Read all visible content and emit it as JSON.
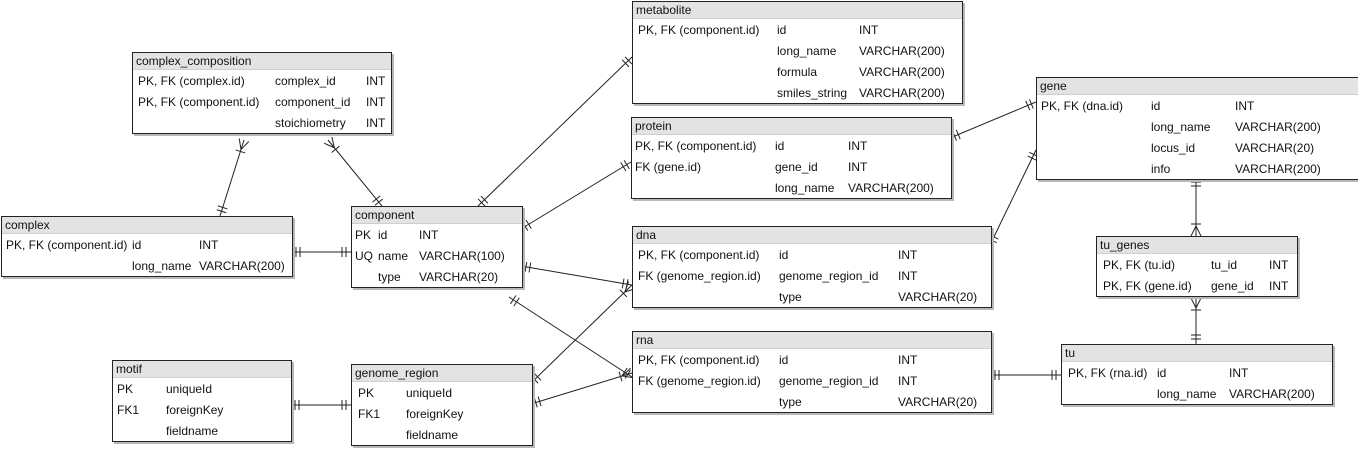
{
  "diagram": {
    "entities": [
      {
        "id": "metabolite",
        "name": "metabolite",
        "rows": [
          [
            "PK, FK (component.id)",
            "id",
            "INT"
          ],
          [
            "",
            "long_name",
            "VARCHAR(200)"
          ],
          [
            "",
            "formula",
            "VARCHAR(200)"
          ],
          [
            "",
            "smiles_string",
            "VARCHAR(200)"
          ]
        ]
      },
      {
        "id": "complex_composition",
        "name": "complex_composition",
        "rows": [
          [
            "PK, FK (complex.id)",
            "complex_id",
            "INT"
          ],
          [
            "PK, FK (component.id)",
            "component_id",
            "INT"
          ],
          [
            "",
            "stoichiometry",
            "INT"
          ]
        ]
      },
      {
        "id": "gene",
        "name": "gene",
        "rows": [
          [
            "PK, FK (dna.id)",
            "id",
            "INT"
          ],
          [
            "",
            "long_name",
            "VARCHAR(200)"
          ],
          [
            "",
            "locus_id",
            "VARCHAR(20)"
          ],
          [
            "",
            "info",
            "VARCHAR(200)"
          ]
        ]
      },
      {
        "id": "protein",
        "name": "protein",
        "rows": [
          [
            "PK, FK (component.id)",
            "id",
            "INT"
          ],
          [
            "FK (gene.id)",
            "gene_id",
            "INT"
          ],
          [
            "",
            "long_name",
            "VARCHAR(200)"
          ]
        ]
      },
      {
        "id": "complex",
        "name": "complex",
        "rows": [
          [
            "PK, FK (component.id)",
            "id",
            "INT"
          ],
          [
            "",
            "long_name",
            "VARCHAR(200)"
          ]
        ]
      },
      {
        "id": "component",
        "name": "component",
        "rows": [
          [
            "PK",
            "id",
            "INT"
          ],
          [
            "UQ",
            "name",
            "VARCHAR(100)"
          ],
          [
            "",
            "type",
            "VARCHAR(20)"
          ]
        ]
      },
      {
        "id": "dna",
        "name": "dna",
        "rows": [
          [
            "PK, FK (component.id)",
            "id",
            "INT"
          ],
          [
            "FK (genome_region.id)",
            "genome_region_id",
            "INT"
          ],
          [
            "",
            "type",
            "VARCHAR(20)"
          ]
        ]
      },
      {
        "id": "tu_genes",
        "name": "tu_genes",
        "rows": [
          [
            "PK, FK (tu.id)",
            "tu_id",
            "INT"
          ],
          [
            "PK, FK (gene.id)",
            "gene_id",
            "INT"
          ]
        ]
      },
      {
        "id": "rna",
        "name": "rna",
        "rows": [
          [
            "PK, FK (component.id)",
            "id",
            "INT"
          ],
          [
            "FK (genome_region.id)",
            "genome_region_id",
            "INT"
          ],
          [
            "",
            "type",
            "VARCHAR(20)"
          ]
        ]
      },
      {
        "id": "tu",
        "name": "tu",
        "rows": [
          [
            "PK, FK (rna.id)",
            "id",
            "INT"
          ],
          [
            "",
            "long_name",
            "VARCHAR(200)"
          ]
        ]
      },
      {
        "id": "motif",
        "name": "motif",
        "rows": [
          [
            "PK",
            "uniqueId",
            ""
          ],
          [
            "FK1",
            "foreignKey",
            ""
          ],
          [
            "",
            "fieldname",
            ""
          ]
        ]
      },
      {
        "id": "genome_region",
        "name": "genome_region",
        "rows": [
          [
            "PK",
            "uniqueId",
            ""
          ],
          [
            "FK1",
            "foreignKey",
            ""
          ],
          [
            "",
            "fieldname",
            ""
          ]
        ]
      }
    ],
    "relationships": [
      {
        "from": "complex_composition",
        "to": "complex",
        "from_end": "many",
        "to_end": "one"
      },
      {
        "from": "complex_composition",
        "to": "component",
        "from_end": "many",
        "to_end": "one"
      },
      {
        "from": "complex",
        "to": "component",
        "from_end": "one",
        "to_end": "one"
      },
      {
        "from": "component",
        "to": "metabolite",
        "from_end": "one",
        "to_end": "one"
      },
      {
        "from": "component",
        "to": "protein",
        "from_end": "one",
        "to_end": "one"
      },
      {
        "from": "component",
        "to": "dna",
        "from_end": "one",
        "to_end": "one"
      },
      {
        "from": "component",
        "to": "rna",
        "from_end": "one",
        "to_end": "one"
      },
      {
        "from": "protein",
        "to": "gene",
        "from_end": "one",
        "to_end": "one"
      },
      {
        "from": "dna",
        "to": "gene",
        "from_end": "one",
        "to_end": "one"
      },
      {
        "from": "gene",
        "to": "tu_genes",
        "from_end": "one",
        "to_end": "many"
      },
      {
        "from": "tu_genes",
        "to": "tu",
        "from_end": "many",
        "to_end": "one"
      },
      {
        "from": "rna",
        "to": "tu",
        "from_end": "one",
        "to_end": "one"
      },
      {
        "from": "motif",
        "to": "genome_region",
        "from_end": "one",
        "to_end": "one"
      },
      {
        "from": "genome_region",
        "to": "dna",
        "from_end": "one",
        "to_end": "many"
      },
      {
        "from": "genome_region",
        "to": "rna",
        "from_end": "one",
        "to_end": "many"
      }
    ]
  }
}
